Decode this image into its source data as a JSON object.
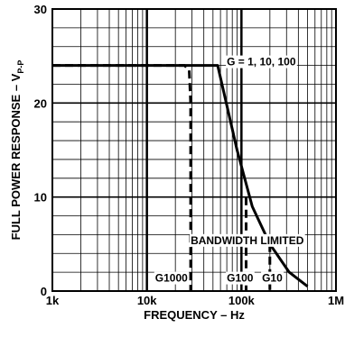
{
  "chart_data": {
    "type": "line",
    "xscale": "log",
    "xlim": [
      1000,
      1000000
    ],
    "ylim": [
      0,
      30
    ],
    "xlabel": "FREQUENCY – Hz",
    "ylabel": "FULL POWER RESPONSE – V",
    "ylabel_sub": "P-P",
    "x_ticks": [
      1000,
      10000,
      100000,
      1000000
    ],
    "x_tick_labels": [
      "1k",
      "10k",
      "100k",
      "1M"
    ],
    "y_ticks": [
      0,
      10,
      20,
      30
    ],
    "y_tick_labels": [
      "0",
      "10",
      "20",
      "30"
    ],
    "grid": true,
    "series": [
      {
        "name": "G = 1, 10, 100",
        "style": "solid",
        "points": [
          [
            1000,
            24
          ],
          [
            56000,
            24
          ],
          [
            90000,
            15
          ],
          [
            130000,
            9
          ],
          [
            200000,
            5
          ],
          [
            320000,
            2
          ],
          [
            500000,
            0.5
          ]
        ]
      },
      {
        "name": "G1000",
        "style": "dashed",
        "points": [
          [
            1000,
            24
          ],
          [
            25000,
            24
          ],
          [
            28000,
            23.5
          ],
          [
            29000,
            20
          ],
          [
            29000,
            0
          ]
        ]
      },
      {
        "name": "G100",
        "style": "dashed",
        "points": [
          [
            112000,
            10
          ],
          [
            112000,
            0
          ]
        ]
      },
      {
        "name": "G10",
        "style": "dashed",
        "points": [
          [
            200000,
            5
          ],
          [
            200000,
            0
          ]
        ]
      }
    ],
    "annotations": [
      {
        "text": "G = 1, 10, 100",
        "x": 70000,
        "y": 24,
        "anchor": "start"
      },
      {
        "text": "BANDWIDTH LIMITED",
        "x": 29000,
        "y": 5,
        "anchor": "start"
      },
      {
        "text": "G1000",
        "x": 27000,
        "y": 1,
        "anchor": "end"
      },
      {
        "text": "G100",
        "x": 70000,
        "y": 1,
        "anchor": "start"
      },
      {
        "text": "G10",
        "x": 165000,
        "y": 1,
        "anchor": "start"
      }
    ]
  }
}
